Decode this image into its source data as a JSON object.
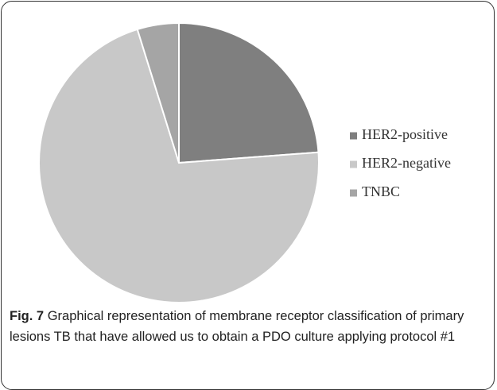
{
  "chart_data": {
    "type": "pie",
    "categories": [
      "HER2-positive",
      "HER2-negative",
      "TNBC"
    ],
    "values": [
      23.8,
      71.4,
      4.8
    ],
    "colors": [
      "#7f7f7f",
      "#c8c8c8",
      "#a5a5a5"
    ],
    "legend": "right",
    "caption_label": "Fig. 7",
    "caption": "Graphical representation of membrane receptor classification of primary lesions TB that have allowed us to obtain a PDO culture applying protocol #1"
  }
}
